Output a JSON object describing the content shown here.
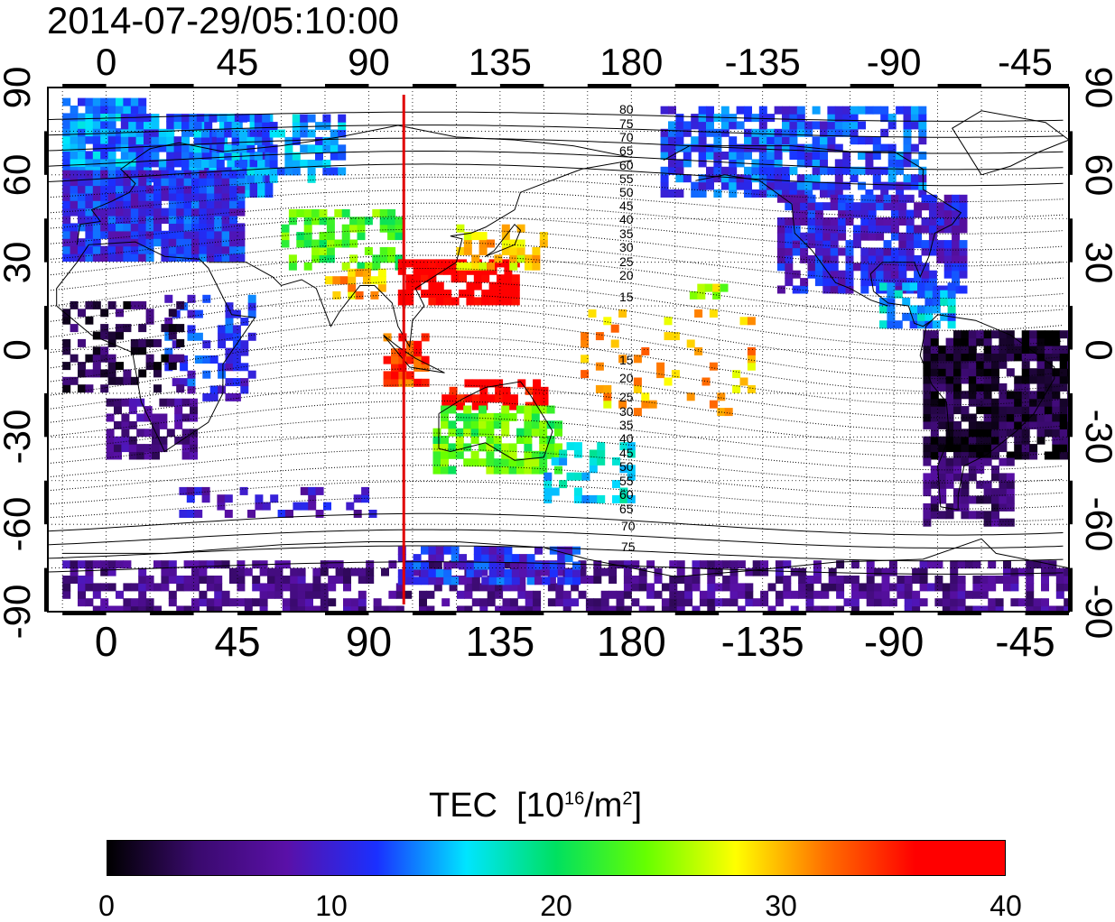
{
  "timestamp": "2014-07-29/05:10:00",
  "top_axis": {
    "ticks": [
      "0",
      "45",
      "90",
      "135",
      "180",
      "-135",
      "-90",
      "-45"
    ]
  },
  "bottom_axis": {
    "ticks": [
      "0",
      "45",
      "90",
      "135",
      "180",
      "-135",
      "-90",
      "-45"
    ]
  },
  "left_axis": {
    "ticks": [
      "90",
      "60",
      "30",
      "0",
      "-30",
      "-60",
      "-90"
    ]
  },
  "right_axis": {
    "ticks": [
      "90",
      "60",
      "30",
      "0",
      "-30",
      "-60",
      "-90"
    ]
  },
  "map": {
    "projection": "equirectangular",
    "lon_range": [
      -20,
      330
    ],
    "lat_range": [
      -90,
      90
    ],
    "meridian_line": {
      "lon": 102,
      "color": "#e00000"
    },
    "contour_labels_north": [
      "80",
      "75",
      "70",
      "65",
      "60",
      "55",
      "50",
      "45",
      "40",
      "35",
      "30",
      "25",
      "20",
      "15"
    ],
    "contour_labels_south": [
      "15",
      "20",
      "25",
      "30",
      "35",
      "40",
      "45",
      "50",
      "55",
      "60",
      "65",
      "70",
      "75"
    ]
  },
  "colorbar": {
    "title": "TEC",
    "unit_prefix": "[10",
    "unit_exp1": "16",
    "unit_mid": "/m",
    "unit_exp2": "2",
    "unit_suffix": "]",
    "ticks": [
      "0",
      "10",
      "20",
      "30",
      "40"
    ],
    "min": 0,
    "max": 40,
    "stops": [
      "#000000",
      "#3a0a6e",
      "#5a10a8",
      "#1a30ff",
      "#00e5ff",
      "#00e060",
      "#66ff00",
      "#ffff00",
      "#ff7000",
      "#ff0000",
      "#ff0000"
    ]
  }
}
